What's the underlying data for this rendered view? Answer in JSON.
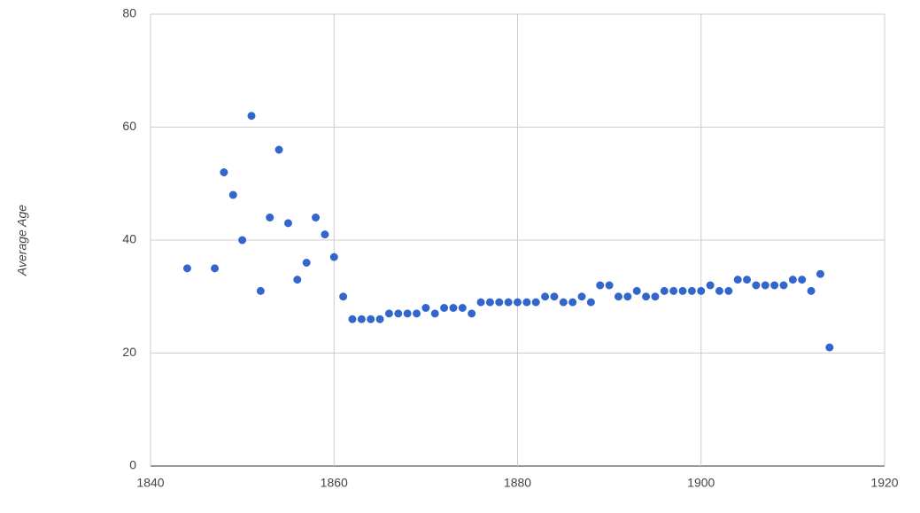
{
  "chart_data": {
    "type": "scatter",
    "y_label": "Average Age",
    "series": [
      {
        "color": "#3366cc",
        "x": [
          1844,
          1847,
          1848,
          1849,
          1850,
          1851,
          1852,
          1853,
          1854,
          1855,
          1856,
          1857,
          1858,
          1859,
          1860,
          1861,
          1862,
          1863,
          1864,
          1865,
          1866,
          1867,
          1868,
          1869,
          1870,
          1871,
          1872,
          1873,
          1874,
          1875,
          1876,
          1877,
          1878,
          1879,
          1880,
          1881,
          1882,
          1883,
          1884,
          1885,
          1886,
          1887,
          1888,
          1889,
          1890,
          1891,
          1892,
          1893,
          1894,
          1895,
          1896,
          1897,
          1898,
          1899,
          1900,
          1901,
          1902,
          1903,
          1904,
          1905,
          1906,
          1907,
          1908,
          1909,
          1910,
          1911,
          1912,
          1913,
          1914
        ],
        "values": [
          35,
          35,
          52,
          48,
          40,
          62,
          31,
          44,
          56,
          43,
          33,
          36,
          44,
          41,
          37,
          30,
          26,
          26,
          26,
          26,
          27,
          27,
          27,
          27,
          28,
          27,
          28,
          28,
          28,
          27,
          29,
          29,
          29,
          29,
          29,
          29,
          29,
          30,
          30,
          29,
          29,
          30,
          29,
          32,
          32,
          30,
          30,
          31,
          30,
          30,
          31,
          31,
          31,
          31,
          31,
          32,
          31,
          31,
          33,
          33,
          32,
          32,
          32,
          32,
          33,
          33,
          31,
          34,
          21
        ]
      }
    ],
    "xlim": [
      1840,
      1920
    ],
    "xticks": [
      1840,
      1860,
      1880,
      1900,
      1920
    ],
    "ylim": [
      0,
      80
    ],
    "yticks": [
      0,
      20,
      40,
      60,
      80
    ],
    "grid": true
  }
}
